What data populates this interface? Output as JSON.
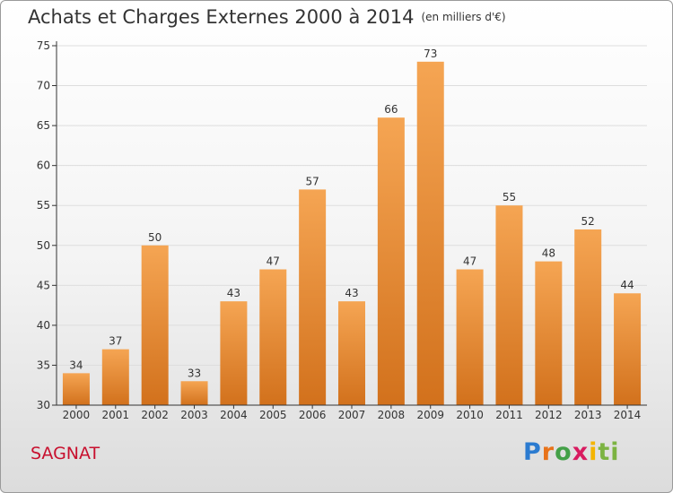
{
  "title": "Achats et Charges Externes 2000 à 2014",
  "unit": "(en milliers d'€)",
  "commune": "SAGNAT",
  "logo": {
    "p1": "P",
    "p2": "r",
    "p3": "o",
    "p4": "x",
    "p5": "i",
    "p6": "ti"
  },
  "colors": {
    "bar_top": "#f5a553",
    "bar_bottom": "#d2711c",
    "axis": "#333333",
    "grid": "#dddddd"
  },
  "chart_data": {
    "type": "bar",
    "categories": [
      "2000",
      "2001",
      "2002",
      "2003",
      "2004",
      "2005",
      "2006",
      "2007",
      "2008",
      "2009",
      "2010",
      "2011",
      "2012",
      "2013",
      "2014"
    ],
    "values": [
      34,
      37,
      50,
      33,
      43,
      47,
      57,
      43,
      66,
      73,
      47,
      55,
      48,
      52,
      44
    ],
    "ylim": [
      30,
      75
    ],
    "yticks": [
      30,
      35,
      40,
      45,
      50,
      55,
      60,
      65,
      70,
      75
    ],
    "grid": true,
    "data_labels": true
  }
}
